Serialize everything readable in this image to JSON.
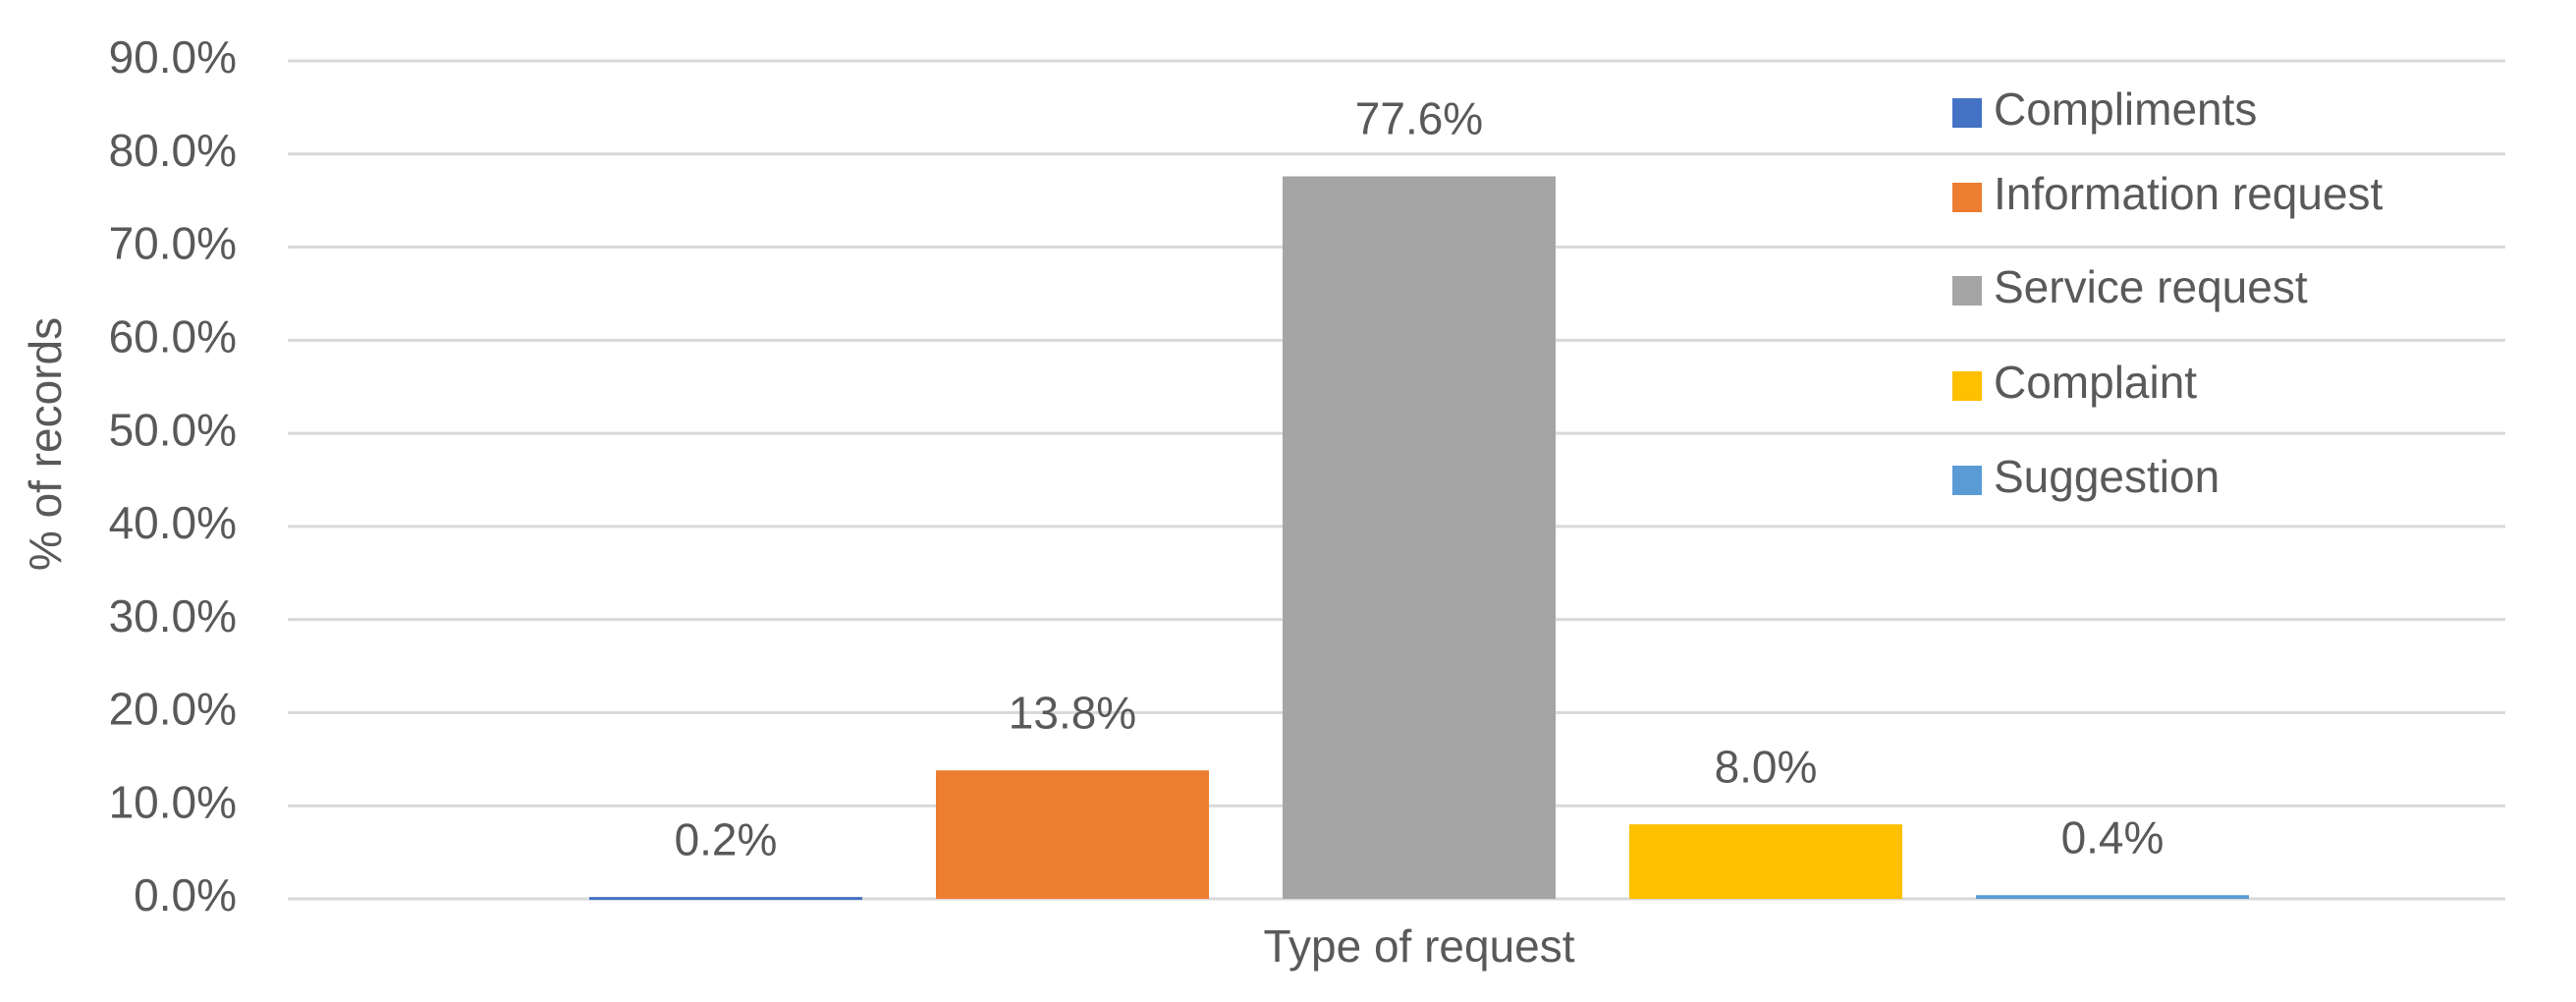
{
  "chart_data": {
    "type": "bar",
    "x_label": "Type of request",
    "y_label": "% of records",
    "series": [
      {
        "name": "Compliments",
        "color": "#4472c4",
        "values": [
          0.2
        ],
        "value_labels": [
          "0.2%"
        ]
      },
      {
        "name": "Information request",
        "color": "#ed7d31",
        "values": [
          13.8
        ],
        "value_labels": [
          "13.8%"
        ]
      },
      {
        "name": "Service request",
        "color": "#a5a5a5",
        "values": [
          77.6
        ],
        "value_labels": [
          "77.6%"
        ]
      },
      {
        "name": "Complaint",
        "color": "#ffc000",
        "values": [
          8.0
        ],
        "value_labels": [
          "8.0%"
        ]
      },
      {
        "name": "Suggestion",
        "color": "#5b9bd5",
        "values": [
          0.4
        ],
        "value_labels": [
          "0.4%"
        ]
      }
    ],
    "ylim": [
      0,
      90
    ],
    "yticks": [
      {
        "value": 0,
        "label": "0.0%"
      },
      {
        "value": 10,
        "label": "10.0%"
      },
      {
        "value": 20,
        "label": "20.0%"
      },
      {
        "value": 30,
        "label": "30.0%"
      },
      {
        "value": 40,
        "label": "40.0%"
      },
      {
        "value": 50,
        "label": "50.0%"
      },
      {
        "value": 60,
        "label": "60.0%"
      },
      {
        "value": 70,
        "label": "70.0%"
      },
      {
        "value": 80,
        "label": "80.0%"
      },
      {
        "value": 90,
        "label": "90.0%"
      }
    ],
    "grid": true,
    "legend": "top-right"
  }
}
